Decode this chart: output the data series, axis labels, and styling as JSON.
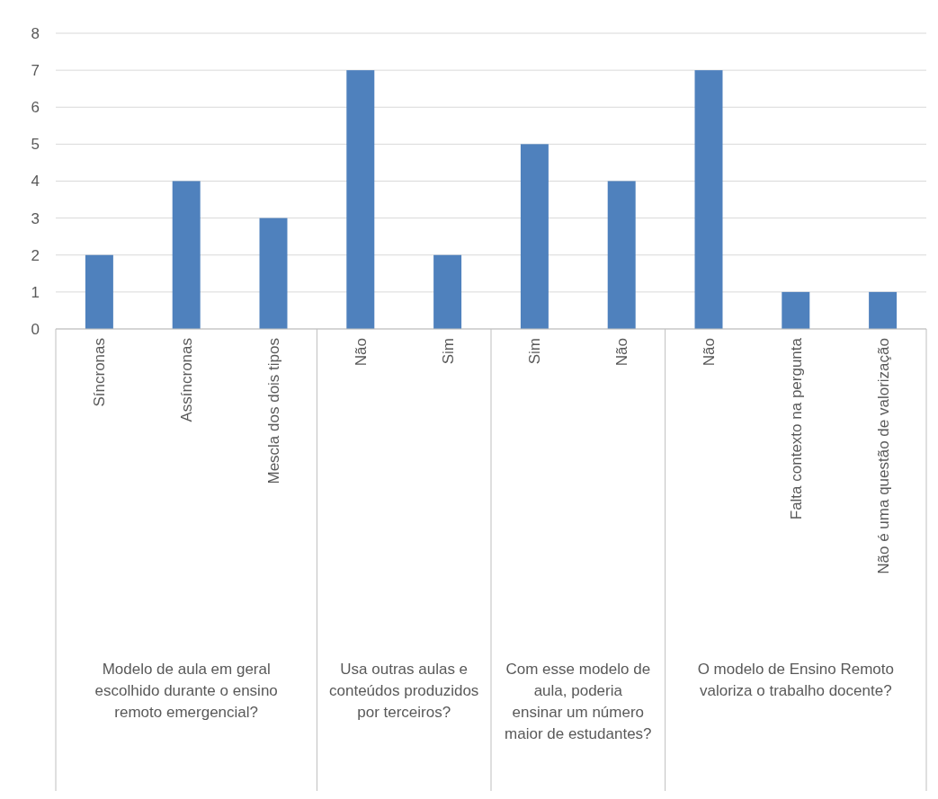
{
  "chart_data": {
    "type": "bar",
    "categories": [
      "Síncronas",
      "Assíncronas",
      "Mescla dos dois tipos",
      "Não",
      "Sim",
      "Sim",
      "Não",
      "Não",
      "Falta contexto na pergunta",
      "Não é uma questão de valorização"
    ],
    "values": [
      2,
      4,
      3,
      7,
      2,
      5,
      4,
      7,
      1,
      1
    ],
    "color": "#4f81bd",
    "ylim": [
      0,
      8
    ],
    "yticks": [
      0,
      1,
      2,
      3,
      4,
      5,
      6,
      7,
      8
    ],
    "grid": "y",
    "annotations": [
      "Modelo de aula em geral escolhido durante o ensino remoto emergencial?",
      "Usa outras aulas e conteúdos produzidos por terceiros?",
      "Com esse modelo de aula, poderia ensinar um número maior de estudantes?",
      "O modelo de Ensino Remoto valoriza o trabalho docente?"
    ]
  }
}
